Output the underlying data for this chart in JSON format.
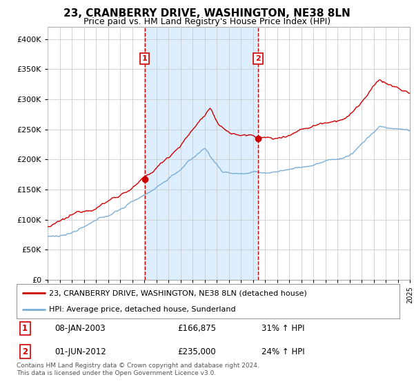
{
  "title": "23, CRANBERRY DRIVE, WASHINGTON, NE38 8LN",
  "subtitle": "Price paid vs. HM Land Registry's House Price Index (HPI)",
  "title_fontsize": 11,
  "subtitle_fontsize": 9,
  "ylim": [
    0,
    420000
  ],
  "yticks": [
    0,
    50000,
    100000,
    150000,
    200000,
    250000,
    300000,
    350000,
    400000
  ],
  "ytick_labels": [
    "£0",
    "£50K",
    "£100K",
    "£150K",
    "£200K",
    "£250K",
    "£300K",
    "£350K",
    "£400K"
  ],
  "year_start": 1995,
  "year_end": 2025,
  "sale1_date_num": 2003.04,
  "sale1_price": 166875,
  "sale2_date_num": 2012.42,
  "sale2_price": 235000,
  "red_line_color": "#cc0000",
  "blue_line_color": "#7aaed6",
  "shaded_region_color": "#ddeeff",
  "grid_color": "#cccccc",
  "background_color": "#ffffff",
  "legend1_text": "23, CRANBERRY DRIVE, WASHINGTON, NE38 8LN (detached house)",
  "legend2_text": "HPI: Average price, detached house, Sunderland",
  "table_row1": [
    "1",
    "08-JAN-2003",
    "£166,875",
    "31% ↑ HPI"
  ],
  "table_row2": [
    "2",
    "01-JUN-2012",
    "£235,000",
    "24% ↑ HPI"
  ],
  "footnote": "Contains HM Land Registry data © Crown copyright and database right 2024.\nThis data is licensed under the Open Government Licence v3.0.",
  "font_family": "DejaVu Sans"
}
